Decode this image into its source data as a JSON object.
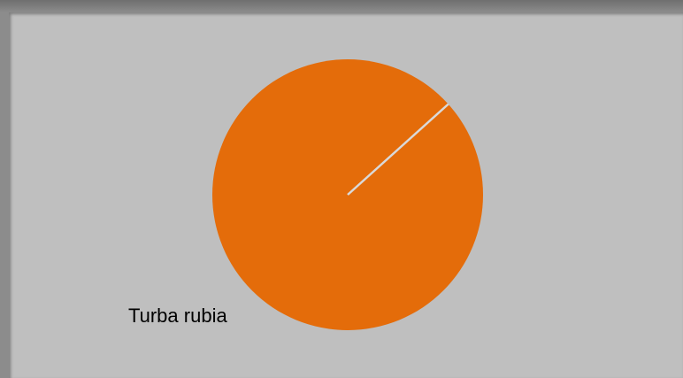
{
  "chart_data": {
    "type": "pie",
    "slices": [
      {
        "label": "Turba rubia",
        "value": 100
      }
    ],
    "colors": {
      "slice": "#E46C0A",
      "separator": "#D9D9D9",
      "plot_background": "#BFBFBF"
    },
    "legend": "none"
  }
}
